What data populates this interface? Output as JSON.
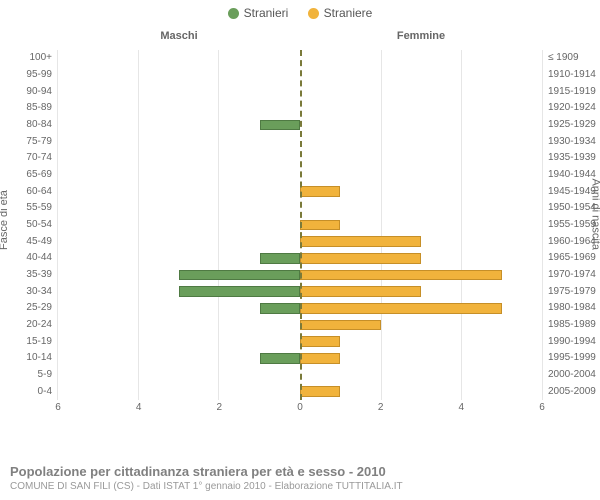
{
  "legend": {
    "items": [
      {
        "label": "Stranieri",
        "color": "#6a9e5b"
      },
      {
        "label": "Straniere",
        "color": "#f1b33c"
      }
    ]
  },
  "headers": {
    "left": "Maschi",
    "right": "Femmine"
  },
  "axis_titles": {
    "left": "Fasce di età",
    "right": "Anni di nascita"
  },
  "chart": {
    "type": "population-pyramid",
    "xmax": 6,
    "xticks": [
      0,
      2,
      4,
      6
    ],
    "grid_color": "#e6e6e6",
    "centerline_color": "#7a7a3a",
    "background_color": "#ffffff",
    "bar_border_width": 1,
    "label_fontsize": 10,
    "male": {
      "fill": "#6a9e5b",
      "border": "#4f7a43"
    },
    "female": {
      "fill": "#f1b33c",
      "border": "#c68f28"
    },
    "categories": [
      {
        "age": "0-4",
        "birth": "2005-2009",
        "m": 0,
        "f": 1
      },
      {
        "age": "5-9",
        "birth": "2000-2004",
        "m": 0,
        "f": 0
      },
      {
        "age": "10-14",
        "birth": "1995-1999",
        "m": 1,
        "f": 1
      },
      {
        "age": "15-19",
        "birth": "1990-1994",
        "m": 0,
        "f": 1
      },
      {
        "age": "20-24",
        "birth": "1985-1989",
        "m": 0,
        "f": 2
      },
      {
        "age": "25-29",
        "birth": "1980-1984",
        "m": 1,
        "f": 5
      },
      {
        "age": "30-34",
        "birth": "1975-1979",
        "m": 3,
        "f": 3
      },
      {
        "age": "35-39",
        "birth": "1970-1974",
        "m": 3,
        "f": 5
      },
      {
        "age": "40-44",
        "birth": "1965-1969",
        "m": 1,
        "f": 3
      },
      {
        "age": "45-49",
        "birth": "1960-1964",
        "m": 0,
        "f": 3
      },
      {
        "age": "50-54",
        "birth": "1955-1959",
        "m": 0,
        "f": 1
      },
      {
        "age": "55-59",
        "birth": "1950-1954",
        "m": 0,
        "f": 0
      },
      {
        "age": "60-64",
        "birth": "1945-1949",
        "m": 0,
        "f": 1
      },
      {
        "age": "65-69",
        "birth": "1940-1944",
        "m": 0,
        "f": 0
      },
      {
        "age": "70-74",
        "birth": "1935-1939",
        "m": 0,
        "f": 0
      },
      {
        "age": "75-79",
        "birth": "1930-1934",
        "m": 0,
        "f": 0
      },
      {
        "age": "80-84",
        "birth": "1925-1929",
        "m": 1,
        "f": 0
      },
      {
        "age": "85-89",
        "birth": "1920-1924",
        "m": 0,
        "f": 0
      },
      {
        "age": "90-94",
        "birth": "1915-1919",
        "m": 0,
        "f": 0
      },
      {
        "age": "95-99",
        "birth": "1910-1914",
        "m": 0,
        "f": 0
      },
      {
        "age": "100+",
        "birth": "≤ 1909",
        "m": 0,
        "f": 0
      }
    ]
  },
  "footer": {
    "title": "Popolazione per cittadinanza straniera per età e sesso - 2010",
    "subtitle": "COMUNE DI SAN FILI (CS) - Dati ISTAT 1° gennaio 2010 - Elaborazione TUTTITALIA.IT"
  }
}
